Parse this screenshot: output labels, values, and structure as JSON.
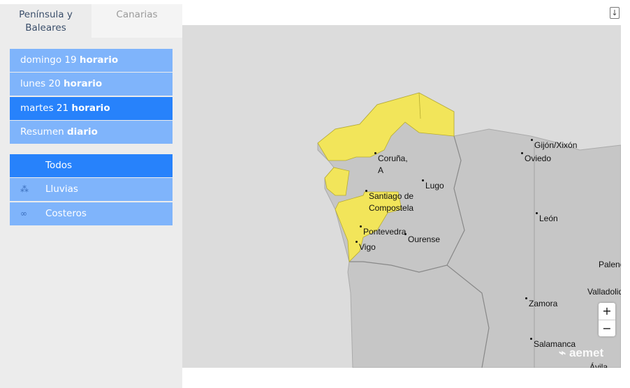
{
  "tabs": [
    {
      "label": "Península y Baleares",
      "active": true
    },
    {
      "label": "Canarias",
      "active": false
    }
  ],
  "days": [
    {
      "pre": "domingo 19",
      "bold": "horario",
      "active": false
    },
    {
      "pre": "lunes 20",
      "bold": "horario",
      "active": false
    },
    {
      "pre": "martes 21",
      "bold": "horario",
      "active": true
    },
    {
      "pre": "Resumen",
      "bold": "diario",
      "active": false
    }
  ],
  "phenomena": [
    {
      "label": "Todos",
      "icon": "",
      "active": true
    },
    {
      "label": "Lluvias",
      "icon": "rain-icon",
      "active": false
    },
    {
      "label": "Costeros",
      "icon": "coastal-icon",
      "active": false
    }
  ],
  "download_icon": "download-icon",
  "map": {
    "warning_color": "#f2e55a",
    "cities": [
      "Gijón/Xixón",
      "Oviedo",
      "Coruña, A",
      "Lugo",
      "Santiago de Compostela",
      "León",
      "Pontevedra",
      "Ourense",
      "Vigo",
      "Palencia",
      "Valladolid",
      "Zamora",
      "Salamanca",
      "Ávila"
    ],
    "zoom_in": "+",
    "zoom_out": "−",
    "logo": "aemet"
  }
}
